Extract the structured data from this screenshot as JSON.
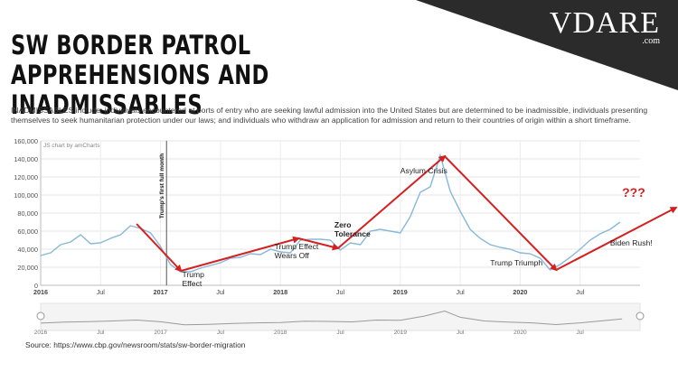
{
  "brand": {
    "name": "VDARE",
    "domain": ".com",
    "banner_color": "#2b2b2b"
  },
  "title": "SW BORDER PATROL APPREHENSIONS AND INADMISSABLES",
  "definition": {
    "term": "INADMISSABLES include:",
    "text": "individuals encountered at ports of entry who are seeking lawful admission into the United States but are determined to be inadmissible, individuals presenting themselves to seek humanitarian protection under our laws; and individuals who withdraw an application for admission and return to their countries of origin within a short timeframe."
  },
  "source": "Source: https://www.cbp.gov/newsroom/stats/sw-border-migration",
  "chart_data": {
    "type": "line",
    "credit": "JS chart by amCharts",
    "ylim": [
      0,
      160000
    ],
    "yticks": [
      0,
      20000,
      40000,
      60000,
      80000,
      100000,
      120000,
      140000,
      160000
    ],
    "ytick_labels": [
      "0",
      "20,000",
      "40,000",
      "60,000",
      "80,000",
      "100,000",
      "120,000",
      "140,000",
      "160,000"
    ],
    "xlim": [
      2016.0,
      2021.0
    ],
    "xticks": [
      {
        "x": 2016.0,
        "label": "2016",
        "bold": true
      },
      {
        "x": 2016.5,
        "label": "Jul",
        "bold": false
      },
      {
        "x": 2017.0,
        "label": "2017",
        "bold": true
      },
      {
        "x": 2017.5,
        "label": "Jul",
        "bold": false
      },
      {
        "x": 2018.0,
        "label": "2018",
        "bold": true
      },
      {
        "x": 2018.5,
        "label": "Jul",
        "bold": false
      },
      {
        "x": 2019.0,
        "label": "2019",
        "bold": true
      },
      {
        "x": 2019.5,
        "label": "Jul",
        "bold": false
      },
      {
        "x": 2020.0,
        "label": "2020",
        "bold": true
      },
      {
        "x": 2020.5,
        "label": "Jul",
        "bold": false
      }
    ],
    "grid": true,
    "line_color": "#87b8d8",
    "annotation_color": "#d42020",
    "series": [
      {
        "x": [
          2016.0,
          2016.083,
          2016.167,
          2016.25,
          2016.333,
          2016.417,
          2016.5,
          2016.583,
          2016.667,
          2016.75,
          2016.833,
          2016.917,
          2017.0,
          2017.083,
          2017.167,
          2017.25,
          2017.333,
          2017.417,
          2017.5,
          2017.583,
          2017.667,
          2017.75,
          2017.833,
          2017.917,
          2018.0,
          2018.083,
          2018.167,
          2018.25,
          2018.333,
          2018.417,
          2018.5,
          2018.583,
          2018.667,
          2018.75,
          2018.833,
          2018.917,
          2019.0,
          2019.083,
          2019.167,
          2019.25,
          2019.333,
          2019.417,
          2019.5,
          2019.583,
          2019.667,
          2019.75,
          2019.833,
          2019.917,
          2020.0,
          2020.083,
          2020.167,
          2020.25,
          2020.333,
          2020.417,
          2020.5,
          2020.583,
          2020.667,
          2020.75,
          2020.833
        ],
        "y": [
          33000,
          36000,
          45000,
          48000,
          56000,
          46000,
          47000,
          52000,
          56000,
          66000,
          63000,
          58000,
          43000,
          23000,
          15000,
          15000,
          19000,
          22000,
          25000,
          30000,
          31000,
          35000,
          34000,
          40000,
          37000,
          36000,
          50000,
          51000,
          51000,
          50000,
          39000,
          47000,
          45000,
          60000,
          62000,
          60000,
          58000,
          76000,
          103000,
          109000,
          144000,
          104000,
          82000,
          62000,
          52000,
          45000,
          42000,
          40000,
          36000,
          35000,
          30000,
          17000,
          23000,
          31000,
          40000,
          50000,
          57000,
          62000,
          70000
        ]
      }
    ],
    "event_lines": [
      {
        "x": 2017.05,
        "label": "Trump's first full month"
      }
    ],
    "annotations": [
      {
        "text": "Trump Effect",
        "x": 2017.18,
        "y": 9000,
        "bold": false
      },
      {
        "text": "Trump Effect Wears Off",
        "x": 2017.95,
        "y": 40000,
        "bold": false
      },
      {
        "text": "Zero Tolerance",
        "x": 2018.45,
        "y": 64000,
        "bold": true
      },
      {
        "text": "Asylum Crisis",
        "x": 2019.0,
        "y": 124000,
        "bold": false
      },
      {
        "text": "Trump Triumph",
        "x": 2019.75,
        "y": 22000,
        "bold": false
      },
      {
        "text": "Biden Rush!",
        "x": 2020.75,
        "y": 44000,
        "bold": false
      },
      {
        "text": "???",
        "x": 2020.85,
        "y": 98000,
        "bold": false
      }
    ],
    "arrows": [
      {
        "x": [
          2016.8,
          2017.17
        ],
        "y": [
          68000,
          16000
        ]
      },
      {
        "x": [
          2017.17,
          2018.15
        ],
        "y": [
          16000,
          52000
        ]
      },
      {
        "x": [
          2018.15,
          2018.48
        ],
        "y": [
          52000,
          41000
        ]
      },
      {
        "x": [
          2018.48,
          2019.37
        ],
        "y": [
          41000,
          143000
        ]
      },
      {
        "x": [
          2019.37,
          2020.3
        ],
        "y": [
          143000,
          17000
        ]
      },
      {
        "x": [
          2020.3,
          2021.3
        ],
        "y": [
          17000,
          86000
        ]
      }
    ],
    "navigator": {
      "x": [
        2016.0,
        2016.2,
        2016.4,
        2016.6,
        2016.8,
        2017.0,
        2017.2,
        2017.4,
        2017.6,
        2017.8,
        2018.0,
        2018.2,
        2018.4,
        2018.6,
        2018.8,
        2019.0,
        2019.2,
        2019.37,
        2019.5,
        2019.7,
        2019.9,
        2020.1,
        2020.3,
        2020.5,
        2020.7,
        2020.85
      ],
      "y": [
        33000,
        42000,
        46000,
        52000,
        60000,
        45000,
        18000,
        22000,
        30000,
        35000,
        38000,
        50000,
        48000,
        44000,
        60000,
        58000,
        95000,
        140000,
        85000,
        52000,
        42000,
        35000,
        20000,
        35000,
        55000,
        70000
      ]
    }
  }
}
